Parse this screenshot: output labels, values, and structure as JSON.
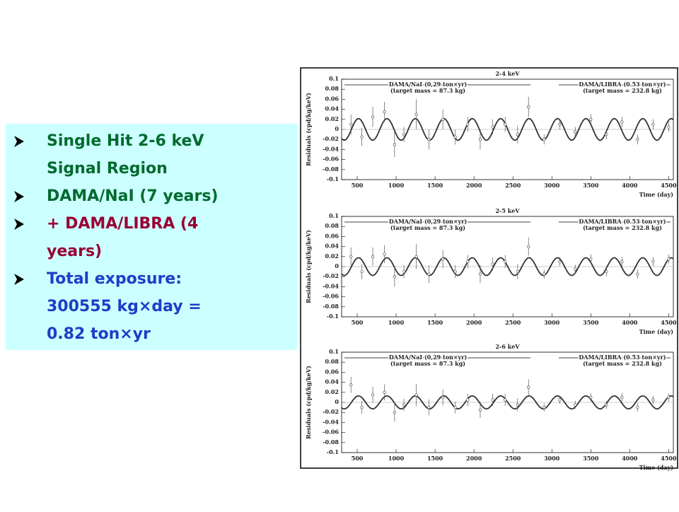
{
  "bullets": [
    {
      "lines": [
        "Single Hit 2-6 keV",
        "Signal Region"
      ],
      "color": "#006a2e"
    },
    {
      "lines": [
        "DAMA/NaI (7 years)"
      ],
      "color": "#006a2e"
    },
    {
      "lines": [
        "+ DAMA/LIBRA (4",
        "years)"
      ],
      "color": "#990033"
    },
    {
      "lines": [
        "Total exposure:",
        "300555 kg×day =",
        "0.82 ton×yr"
      ],
      "color": "#1a3fc8"
    }
  ],
  "chart_data": [
    {
      "type": "scatter",
      "title": "2-4 keV",
      "ylabel": "Residuals (cpd/kg/keV)",
      "xlabel": "Time (day)",
      "annotations": [
        "DAMA/NaI (0,29 ton×yr)",
        "(target mass = 87.3 kg)",
        "DAMA/LIBRA (0.53 ton×yr)",
        "(target mass = 232.8 kg)"
      ],
      "x": [
        420,
        560,
        700,
        850,
        980,
        1100,
        1260,
        1420,
        1600,
        1760,
        1920,
        2080,
        2240,
        2400,
        2560,
        2700,
        2900,
        3100,
        3300,
        3500,
        3700,
        3900,
        4100,
        4300,
        4500
      ],
      "values": [
        0.01,
        -0.015,
        0.025,
        0.035,
        -0.03,
        -0.01,
        0.03,
        -0.02,
        0.02,
        -0.015,
        0.01,
        -0.02,
        0.005,
        0.01,
        -0.01,
        0.045,
        -0.02,
        0.01,
        -0.005,
        0.02,
        -0.01,
        0.015,
        -0.02,
        0.01,
        0.005
      ],
      "errors": [
        0.02,
        0.018,
        0.02,
        0.02,
        0.025,
        0.015,
        0.03,
        0.02,
        0.02,
        0.015,
        0.015,
        0.02,
        0.015,
        0.015,
        0.018,
        0.02,
        0.01,
        0.01,
        0.01,
        0.01,
        0.01,
        0.01,
        0.01,
        0.01,
        0.01
      ],
      "fit": {
        "amplitude": 0.0215,
        "period": 365,
        "phase": 152
      },
      "color": "#555555",
      "fit_color": "#333333",
      "xlim": [
        300,
        4560
      ],
      "ylim": [
        -0.1,
        0.1
      ],
      "xticks": [
        500,
        1000,
        1500,
        2000,
        2500,
        3000,
        3500,
        4000,
        4500
      ],
      "yticks": [
        -0.1,
        -0.08,
        -0.06,
        -0.04,
        -0.02,
        0,
        0.02,
        0.04,
        0.06,
        0.08,
        0.1
      ]
    },
    {
      "type": "scatter",
      "title": "2-5 keV",
      "ylabel": "Residuals (cpd/kg/keV)",
      "xlabel": "Time (day)",
      "annotations": [
        "DAMA/NaI (0,29 ton×yr)",
        "(target mass = 87.3 kg)",
        "DAMA/LIBRA (0.53 ton×yr)",
        "(target mass = 232.8 kg)"
      ],
      "x": [
        420,
        560,
        700,
        850,
        980,
        1100,
        1260,
        1420,
        1600,
        1760,
        1920,
        2080,
        2240,
        2400,
        2560,
        2700,
        2900,
        3100,
        3300,
        3500,
        3700,
        3900,
        4100,
        4300,
        4500
      ],
      "values": [
        0.02,
        -0.01,
        0.02,
        0.025,
        -0.02,
        -0.01,
        0.02,
        -0.015,
        0.015,
        -0.01,
        0.01,
        -0.015,
        0.005,
        0.01,
        -0.01,
        0.04,
        -0.015,
        0.01,
        -0.005,
        0.015,
        -0.01,
        0.01,
        -0.015,
        0.01,
        0.015
      ],
      "errors": [
        0.018,
        0.015,
        0.018,
        0.018,
        0.02,
        0.013,
        0.025,
        0.018,
        0.018,
        0.013,
        0.013,
        0.018,
        0.013,
        0.013,
        0.015,
        0.018,
        0.009,
        0.009,
        0.009,
        0.009,
        0.009,
        0.009,
        0.009,
        0.009,
        0.009
      ],
      "fit": {
        "amplitude": 0.0176,
        "period": 365,
        "phase": 152
      },
      "color": "#555555",
      "fit_color": "#333333",
      "xlim": [
        300,
        4560
      ],
      "ylim": [
        -0.1,
        0.1
      ],
      "xticks": [
        500,
        1000,
        1500,
        2000,
        2500,
        3000,
        3500,
        4000,
        4500
      ],
      "yticks": [
        -0.1,
        -0.08,
        -0.06,
        -0.04,
        -0.02,
        0,
        0.02,
        0.04,
        0.06,
        0.08,
        0.1
      ]
    },
    {
      "type": "scatter",
      "title": "2-6 keV",
      "ylabel": "Residuals (cpd/kg/keV)",
      "xlabel": "Time (day)",
      "annotations": [
        "DAMA/NaI (0,29 ton×yr)",
        "(target mass = 87.3 kg)",
        "DAMA/LIBRA (0.53 ton×yr)",
        "(target mass = 232.8 kg)"
      ],
      "x": [
        420,
        560,
        700,
        850,
        980,
        1100,
        1260,
        1420,
        1600,
        1760,
        1920,
        2080,
        2240,
        2400,
        2560,
        2700,
        2900,
        3100,
        3300,
        3500,
        3700,
        3900,
        4100,
        4300,
        4500
      ],
      "values": [
        0.035,
        -0.01,
        0.015,
        0.02,
        -0.02,
        -0.005,
        0.015,
        -0.01,
        0.01,
        -0.01,
        0.005,
        -0.015,
        0.005,
        0.005,
        -0.005,
        0.03,
        -0.01,
        0.005,
        -0.005,
        0.01,
        -0.005,
        0.01,
        -0.01,
        0.005,
        0.01
      ],
      "errors": [
        0.016,
        0.013,
        0.016,
        0.016,
        0.018,
        0.012,
        0.022,
        0.016,
        0.016,
        0.012,
        0.012,
        0.016,
        0.012,
        0.012,
        0.013,
        0.016,
        0.008,
        0.008,
        0.008,
        0.008,
        0.008,
        0.008,
        0.008,
        0.008,
        0.008
      ],
      "fit": {
        "amplitude": 0.0129,
        "period": 365,
        "phase": 152
      },
      "color": "#555555",
      "fit_color": "#333333",
      "xlim": [
        300,
        4560
      ],
      "ylim": [
        -0.1,
        0.1
      ],
      "xticks": [
        500,
        1000,
        1500,
        2000,
        2500,
        3000,
        3500,
        4000,
        4500
      ],
      "yticks": [
        -0.1,
        -0.08,
        -0.06,
        -0.04,
        -0.02,
        0,
        0.02,
        0.04,
        0.06,
        0.08,
        0.1
      ]
    }
  ]
}
